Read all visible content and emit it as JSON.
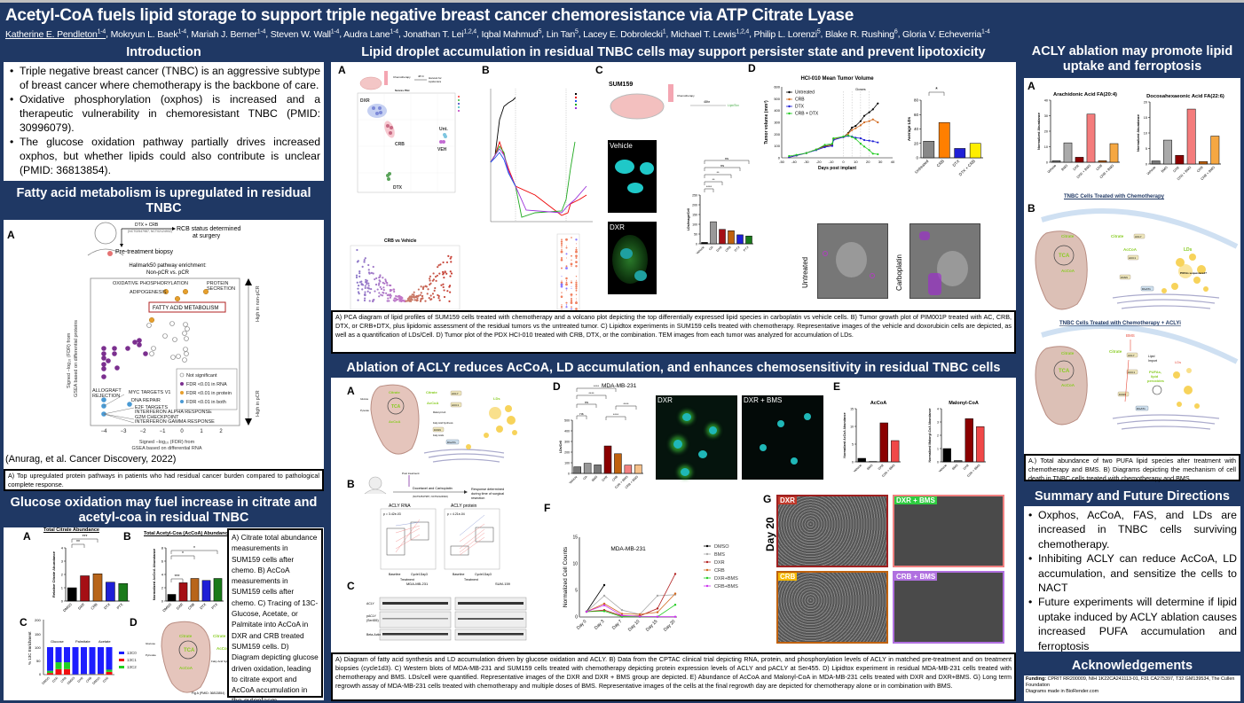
{
  "header": {
    "title": "Acetyl-CoA fuels lipid storage to support triple negative breast cancer chemoresistance via ATP Citrate Lyase",
    "authors": [
      {
        "name": "Katherine E. Pendleton",
        "sup": "1-4"
      },
      {
        "name": "Mokryun L. Baek",
        "sup": "1-4"
      },
      {
        "name": "Mariah J. Berner",
        "sup": "1-4"
      },
      {
        "name": "Steven W. Wall",
        "sup": "1-4"
      },
      {
        "name": "Audra Lane",
        "sup": "1-4"
      },
      {
        "name": "Jonathan T. Lei",
        "sup": "1,2,4"
      },
      {
        "name": "Iqbal Mahmud",
        "sup": "5"
      },
      {
        "name": "Lin Tan",
        "sup": "5"
      },
      {
        "name": "Lacey E. Dobrolecki",
        "sup": "1"
      },
      {
        "name": "Michael T. Lewis",
        "sup": "1,2,4"
      },
      {
        "name": "Philip L. Lorenzi",
        "sup": "5"
      },
      {
        "name": "Blake R. Rushing",
        "sup": "6"
      },
      {
        "name": "Gloria V. Echeverria",
        "sup": "1-4"
      }
    ]
  },
  "introduction": {
    "title": "Introduction",
    "bullets": [
      "Triple negative breast cancer (TNBC) is an aggressive subtype of breast cancer where chemotherapy is the backbone of care.",
      "Oxidative phosphorylation (oxphos) is increased and a therapeutic vulnerability in chemoresistant TNBC (PMID: 30996079).",
      "The glucose oxidation pathway partially drives increased oxphos, but whether lipids could also contribute is unclear (PMID: 36813854)."
    ]
  },
  "fatty_acid": {
    "title": "Fatty acid metabolism is upregulated in residual TNBC",
    "panel_label": "A",
    "schema_top": "DTX + CRB",
    "schema_sub": "(NCT02547987, NCT02124902)",
    "schema_right": "RCB status determined at surgery",
    "schema_left": "Pre-treatment biopsy",
    "plot_title": "Hallmark50 pathway enrichment: Non-pCR vs. pCR",
    "xlabel": "Signed −log10 (FDR) from GSEA based on differential RNA",
    "ylabel": "Signed −log10 (FDR) from GSEA based on differential proteins",
    "right_top": "High in non-pCR",
    "right_bottom": "High in pCR",
    "highlight": "FATTY ACID METABOLISM",
    "annotations": [
      "OXIDATIVE PHOSPHORYLATION",
      "PROTEIN SECRETION",
      "ADIPOGENESIS",
      "ALLOGRAFT REJECTION",
      "MYC TARGETS V1",
      "DNA REPAIR",
      "E2F TARGETS",
      "INTERFERON ALPHA RESPONSE",
      "G2M CHECKPOINT",
      "INTERFERON GAMMA RESPONSE"
    ],
    "legend": [
      "Not significant",
      "FDR <0.01 in RNA",
      "FDR <0.01 in protein",
      "FDR <0.01 in both"
    ],
    "citation": "(Anurag, et al. Cancer Discovery, 2022)",
    "caption": "A) Top upregulated protein pathways in patients who had residual cancer burden compared to pathological complete response."
  },
  "glucose": {
    "title": "Glucose oxidation may fuel increase in citrate and acetyl-coa in residual TNBC",
    "panelA": {
      "label": "A",
      "title": "Total Citrate Abundance",
      "ylabel": "Relative Citrate Abundance",
      "cats": [
        "DMSO",
        "DXR",
        "CRB",
        "DTX",
        "PTX"
      ],
      "values": [
        1.0,
        1.9,
        2.05,
        1.42,
        1.32
      ],
      "colors": [
        "#000000",
        "#a50f15",
        "#b8651a",
        "#1f1fd6",
        "#1a7a1a"
      ],
      "sig": [
        "**",
        "***"
      ]
    },
    "panelB": {
      "label": "B",
      "title": "Total Acetyl-Coa (AcCoA) Abundance",
      "ylabel": "Normalized AcCoA Abundance",
      "cats": [
        "DMSO",
        "DXR",
        "CRB",
        "DTX",
        "PTX"
      ],
      "values": [
        1.0,
        2.75,
        3.4,
        3.1,
        3.4
      ],
      "sig": [
        "***",
        "*",
        "*"
      ]
    },
    "panelC": {
      "label": "C",
      "ylabel": "% 13C Enrichment",
      "groups": [
        "Glucose",
        "Palmitate",
        "Acetate"
      ],
      "cats": [
        "DMSO",
        "DXR",
        "CRB",
        "DMSO",
        "DXR",
        "CRB",
        "DMSO",
        "DXR"
      ],
      "legend": [
        "13C0",
        "13C1",
        "13C2"
      ]
    },
    "panelD": {
      "label": "D",
      "source": "Fig A (PMID: 36813854)",
      "labels": [
        "Citrate",
        "Citrate",
        "TCA",
        "AcCoA",
        "AcCoA",
        "Glucose",
        "Pyruvate",
        "Fatty Acid Synthesis"
      ]
    },
    "caption": "A) Citrate total abundance measurements in SUM159 cells after chemo. B) AcCoA measurements in SUM159 cells after chemo. C) Tracing of 13C-Glucose, Acetate, or Palmitate into AcCoA in DXR and CRB treated SUM159 cells. D) Diagram depicting glucose driven oxidation, leading to citrate export and AcCoA accumulation in the cytoplasm."
  },
  "lipid_droplet": {
    "title": "Lipid droplet accumulation in residual TNBC cells may support persister state and prevent lipotoxicity",
    "panelA": {
      "label": "A",
      "schema": [
        "Chemotherapy",
        "48 hr",
        "Harvest for Lipidomics"
      ],
      "pca_title": "Scores Plot",
      "groups": [
        "DXR",
        "CRB",
        "Unt.",
        "VEH",
        "DTX"
      ],
      "volcano_title": "CRB vs Vehicle"
    },
    "panelB": {
      "label": "B"
    },
    "panelC": {
      "label": "C",
      "cell_line": "SUM159",
      "time": "48hr",
      "readout": "LipidTox",
      "images": [
        "Vehicle",
        "DXR"
      ],
      "ylabel": "LDs/Image/Cell",
      "cats": [
        "Vehicle",
        "OA",
        "DXR",
        "CRB",
        "DTX",
        "PTX"
      ],
      "values": [
        7,
        113,
        74,
        67,
        46,
        40
      ],
      "sig": [
        "****",
        "**",
        "**",
        "ns",
        "ns"
      ]
    },
    "panelD": {
      "label": "D",
      "images": [
        "Untreated",
        "Carboplatin"
      ]
    },
    "caption": "A) PCA diagram of lipid profiles of SUM159 cells treated with chemotherapy and a volcano plot depicting the top differentially expressed lipid species in carboplatin vs vehicle cells. B) Tumor growth plot of PIM001P treated with AC, CRB, DTX, or CRB+DTX, plus lipidomic assessment of the residual tumors vs the untreated tumor. C) Lipidtox experiments in SUM159 cells treated with chemotherapy. Representative images of the vehicle and doxorubicin cells are depicted, as well as a quantification of LDs/Cell. D) Tumor plot of the PDX HCI-010 treated with CRB, DTX, or the combination. TEM images from each tumor was analyzed for accumulation of LDs."
  },
  "ablation": {
    "title": "Ablation of ACLY reduces AcCoA, LD accumulation, and enhances chemosensitivity in residual TNBC cells",
    "panelA": {
      "label": "A",
      "labels": [
        "Citrate",
        "Citrate",
        "ACLY",
        "AcCoA",
        "ACC1",
        "Malonyl-CoA",
        "Fatty Acid Synthesis",
        "FASN",
        "Fatty Acids",
        "DGAT1",
        "LDs",
        "TCA",
        "AcCoA",
        "Glucose",
        "Pyruvate"
      ]
    },
    "panelB": {
      "label": "B",
      "schema": [
        "Docetaxel and Carboplatin",
        "(NCT02547987, NCT02124902)",
        "Response determined during time of surgical resection",
        "N=33"
      ],
      "rna_title": "ACLY RNA",
      "rna_p": "p = 3.42e-03",
      "prot_title": "ACLY protein",
      "prot_p": "p = 4.21e-04",
      "xlabel": "Treatment",
      "x_cats": [
        "Baseline",
        "Cycle1Day3"
      ]
    },
    "panelC": {
      "label": "C",
      "lines": [
        "MDA-MB-231",
        "SUM-159"
      ],
      "rows": [
        "ACLY",
        "pACLY (Ser455)",
        "Beta-Actin"
      ]
    },
    "panelD": {
      "label": "D",
      "title": "MDA-MB-231",
      "ylabel": "LDs/Cell",
      "cats": [
        "Vehicle",
        "OA",
        "BMS",
        "DXR",
        "CRB",
        "DXR + BMS",
        "CRB + BMS"
      ],
      "values": [
        62,
        95,
        80,
        258,
        185,
        78,
        82
      ],
      "colors": [
        "#777777",
        "#999999",
        "#777777",
        "#8b0000",
        "#c0620e",
        "#f28080",
        "#f5c08a"
      ],
      "sig": [
        "ns",
        "ns",
        "****",
        "****",
        "****",
        "****"
      ],
      "images": [
        "DXR",
        "DXR + BMS"
      ]
    },
    "panelE": {
      "label": "E",
      "charts": [
        {
          "title": "AcCoA",
          "ylabel": "Normalized AcCoA Abundance",
          "cats": [
            "Vehicle",
            "BMS",
            "DXR",
            "DXR + BMS"
          ],
          "values": [
            1.0,
            0.1,
            11.0,
            6.0
          ],
          "ymax": 15
        },
        {
          "title": "Malonyl-CoA",
          "ylabel": "Normalized Malonyl-CoA Abundance",
          "cats": [
            "Vehicle",
            "BMS",
            "DXR",
            "DXR + BMS"
          ],
          "values": [
            1.0,
            0.1,
            3.25,
            2.65
          ],
          "ymax": 4
        }
      ]
    },
    "panelF": {
      "label": "F",
      "title": "MDA-MB-231",
      "ylabel": "Normalized Cell Counts",
      "x": [
        "Day 0",
        "Day 3",
        "Day 7",
        "Day 10",
        "Day 15",
        "Day 20"
      ]
    },
    "panelG": {
      "label": "G",
      "side": "Day 20",
      "images": [
        {
          "label": "DXR",
          "color": "#c0392b"
        },
        {
          "label": "DXR + BMS",
          "color": "#2ecc40"
        },
        {
          "label": "CRB",
          "color": "#f5b800"
        },
        {
          "label": "CRB + BMS",
          "color": "#b070e0"
        }
      ]
    },
    "caption": "A) Diagram of fatty acid synthesis and LD accumulation driven by glucose oxidation and ACLY. B) Data from the CPTAC clinical trial depicting RNA, protein, and phosphorylation levels of ACLY in matched pre-treatment and on treatment biopsies (cycle1d3). C) Western blots of MDA-MB-231 and SUM159 cells treated with chemotherapy depicting protein expression levels of ACLY and pACLY at Ser455. D) Lipidtox experiment in residual MDA-MB-231 cells treated with chemotherapy and BMS. LDs/cell were quantified. Representative images of the DXR and DXR + BMS group are depicted.  E) Abundance of AcCoA and Malonyl-CoA in MDA-MB-231 cells treated with DXR and DXR+BMS. G) Long term regrowth assay of MDA-MB-231 cells treated with chemotherapy and multiple doses of BMS. Representative images of the cells at the final regrowth day are depicted for chemotherapy alone or in combination with BMS."
  },
  "acly_ferro": {
    "title": "ACLY ablation may promote lipid uptake and ferroptosis",
    "panelA": {
      "label": "A",
      "charts": [
        {
          "title": "Arachidonic Acid FA(20:4)",
          "ylabel": "Normalized Abundance",
          "cats": [
            "Vehicle",
            "BMS",
            "DXR",
            "DXR + BMS",
            "CRB",
            "CRB + BMS"
          ],
          "values": [
            1,
            12.5,
            3.2,
            31,
            1,
            12
          ],
          "ymax": 40
        },
        {
          "title": "Docosahexaeonic Acid FA(22:6)",
          "ylabel": "Normalized Abundance",
          "cats": [
            "Vehicle",
            "BMS",
            "DXR",
            "DXR + BMS",
            "CRB",
            "CRB + BMS"
          ],
          "values": [
            1,
            7.7,
            2.8,
            17.7,
            0.8,
            9
          ],
          "ymax": 20
        }
      ],
      "colors": [
        "#777777",
        "#aaaaaa",
        "#8b0000",
        "#f47c7c",
        "#c0620e",
        "#f5a742"
      ]
    },
    "panelB": {
      "label": "B",
      "diagram1_title": "TNBC Cells Treated with Chemotherapy",
      "diagram2_title": "TNBC Cells Treated with Chemotherapy + ACLYi",
      "d1_note": "PUFAs sequestered?",
      "d2_labels": [
        "BMS",
        "Lipid Import",
        "PUFAs, lipid peroxides",
        "LDs"
      ]
    },
    "caption": "A.) Total abundance of two PUFA lipid species after treatment with chemotherapy and BMS. B) Diagrams depicting the mechanism of cell death in TNBC cells treated with chemotherapy and BMS."
  },
  "summary": {
    "title": "Summary and Future Directions",
    "bullets": [
      "Oxphos, AcCoA, FAS, and LDs are increased in TNBC cells surviving chemotherapy.",
      "Inhibiting ACLY can reduce AcCoA, LD accumulation, and sensitize the cells to NACT",
      "Future experiments will determine if lipid uptake induced by ACLY ablation causes increased PUFA accumulation and ferroptosis"
    ]
  },
  "acknowledgements": {
    "title": "Acknowledgements",
    "funding_label": "Funding:",
    "funding": "CPRIT RR200009, NIH 1K22CA241113-01, F31 CA275397, T32 GM139534, The Cullen Foundation",
    "diagrams": "Diagrams made in BioRender.com"
  },
  "chart_data": [
    {
      "type": "bar",
      "title": "HCI-010 Mean Tumor Volume",
      "xlabel": "Days post implant",
      "ylabel": "Tumor volume (mm3)",
      "x": [
        -44,
        -38,
        -30,
        -22,
        -15,
        -9,
        -8,
        0,
        4,
        7,
        10,
        14,
        17,
        21,
        24,
        28
      ],
      "series": [
        {
          "name": "Untreated",
          "values": [
            5,
            20,
            40,
            70,
            100,
            110,
            160,
            175,
            210,
            255,
            270,
            310,
            355,
            385,
            410,
            460
          ]
        },
        {
          "name": "CRB",
          "values": [
            5,
            20,
            40,
            70,
            95,
            105,
            160,
            175,
            205,
            235,
            250,
            275,
            300,
            310,
            325,
            300
          ]
        },
        {
          "name": "DTX",
          "values": [
            5,
            20,
            40,
            65,
            90,
            100,
            150,
            175,
            185,
            180,
            170,
            165,
            150,
            145,
            140,
            130
          ]
        },
        {
          "name": "CRB + DTX",
          "values": [
            15,
            25,
            40,
            70,
            110,
            120,
            165,
            180,
            190,
            175,
            160,
            120,
            95,
            65,
            35,
            30
          ]
        }
      ],
      "ylim": [
        0,
        600
      ],
      "xlim": [
        -50,
        40
      ]
    },
    {
      "type": "bar",
      "title": "Average LDs",
      "categories": [
        "Untreated",
        "CRB",
        "DTX",
        "DTX + CRB"
      ],
      "values": [
        23,
        49,
        13,
        20
      ],
      "ylabel": "Average LDs",
      "ylim": [
        0,
        80
      ]
    },
    {
      "type": "line",
      "title": "MDA-MB-231 regrowth",
      "xlabel": "",
      "ylabel": "Normalized Cell Counts",
      "categories": [
        "Day 0",
        "Day 3",
        "Day 7",
        "Day 10",
        "Day 15",
        "Day 20"
      ],
      "series": [
        {
          "name": "DMSO",
          "values": [
            1,
            6,
            null,
            null,
            null,
            null
          ]
        },
        {
          "name": "BMS",
          "values": [
            1,
            4,
            1.3,
            0.5,
            4,
            4.2
          ]
        },
        {
          "name": "DXR",
          "values": [
            1,
            1.3,
            0.2,
            0.2,
            1.6,
            8.1
          ]
        },
        {
          "name": "CRB",
          "values": [
            1,
            2.5,
            0.6,
            0.5,
            0.9,
            4.4
          ]
        },
        {
          "name": "DXR+BMS",
          "values": [
            1,
            1.1,
            0.05,
            0.05,
            0.05,
            2.3
          ]
        },
        {
          "name": "CRB+BMS",
          "values": [
            1,
            2.2,
            0.3,
            0.1,
            0.05,
            0.05
          ]
        }
      ],
      "ylim": [
        0,
        15
      ]
    }
  ]
}
